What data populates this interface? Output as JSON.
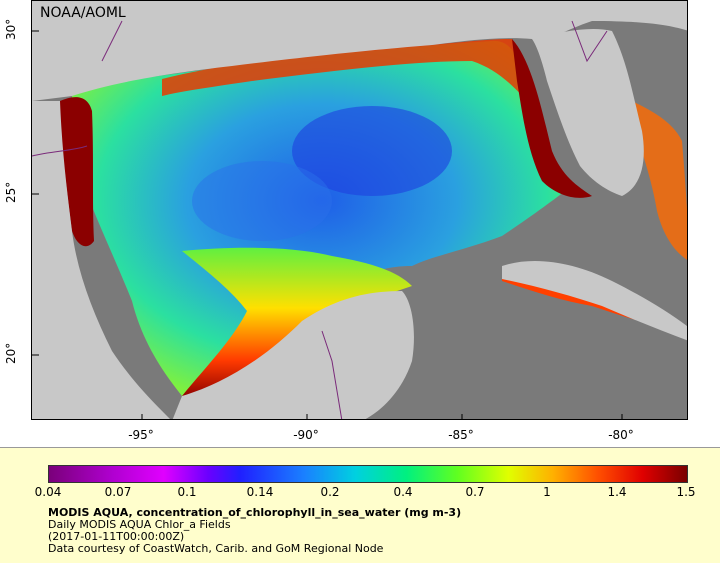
{
  "map": {
    "agency": "NOAA/AOML",
    "x_ticks": [
      "-95°",
      "-90°",
      "-85°",
      "-80°"
    ],
    "y_ticks": [
      "30°",
      "25°",
      "20°"
    ]
  },
  "legend": {
    "colorbar_ticks": [
      "0.04",
      "0.07",
      "0.1",
      "0.14",
      "0.2",
      "0.4",
      "0.7",
      "1",
      "1.4",
      "1.5"
    ],
    "title": "MODIS AQUA, concentration_of_chlorophyll_in_sea_water (mg m-3)",
    "subtitle": "Daily MODIS AQUA Chlor_a Fields",
    "timestamp": "(2017-01-11T00:00:00Z)",
    "credit": "Data courtesy of CoastWatch, Carib. and GoM Regional Node"
  },
  "colors": {
    "land": "#c8c8c8",
    "no_data": "#7a7a7a",
    "border": "#7a2a7a",
    "legend_bg": "#fffecc"
  }
}
